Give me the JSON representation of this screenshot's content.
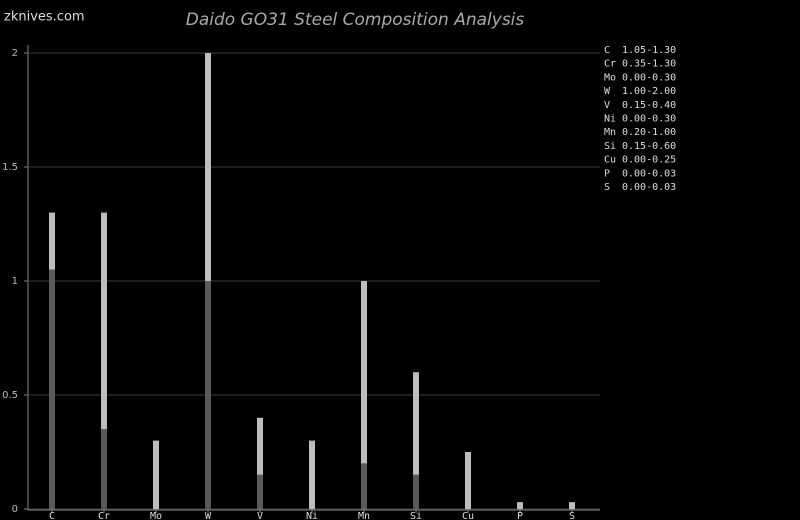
{
  "site": "zknives.com",
  "chart_data": {
    "type": "range_bar",
    "title": "Daido GO31 Steel Composition Analysis",
    "categories": [
      "C",
      "Cr",
      "Mo",
      "W",
      "V",
      "Ni",
      "Mn",
      "Si",
      "Cu",
      "P",
      "S"
    ],
    "low": [
      1.05,
      0.35,
      0.0,
      1.0,
      0.15,
      0.0,
      0.2,
      0.15,
      0.0,
      0.0,
      0.0
    ],
    "high": [
      1.3,
      1.3,
      0.3,
      2.0,
      0.4,
      0.3,
      1.0,
      0.6,
      0.25,
      0.03,
      0.03
    ],
    "range_labels": [
      "1.05-1.30",
      "0.35-1.30",
      "0.00-0.30",
      "1.00-2.00",
      "0.15-0.40",
      "0.00-0.30",
      "0.20-1.00",
      "0.15-0.60",
      "0.00-0.25",
      "0.00-0.03",
      "0.00-0.03"
    ],
    "low_color": "#5a5a5a",
    "high_color": "#bdbdbd",
    "ylim": [
      0,
      2
    ],
    "yticks": [
      0,
      0.5,
      1,
      1.5,
      2
    ],
    "grid": true,
    "legend": "top-right"
  }
}
